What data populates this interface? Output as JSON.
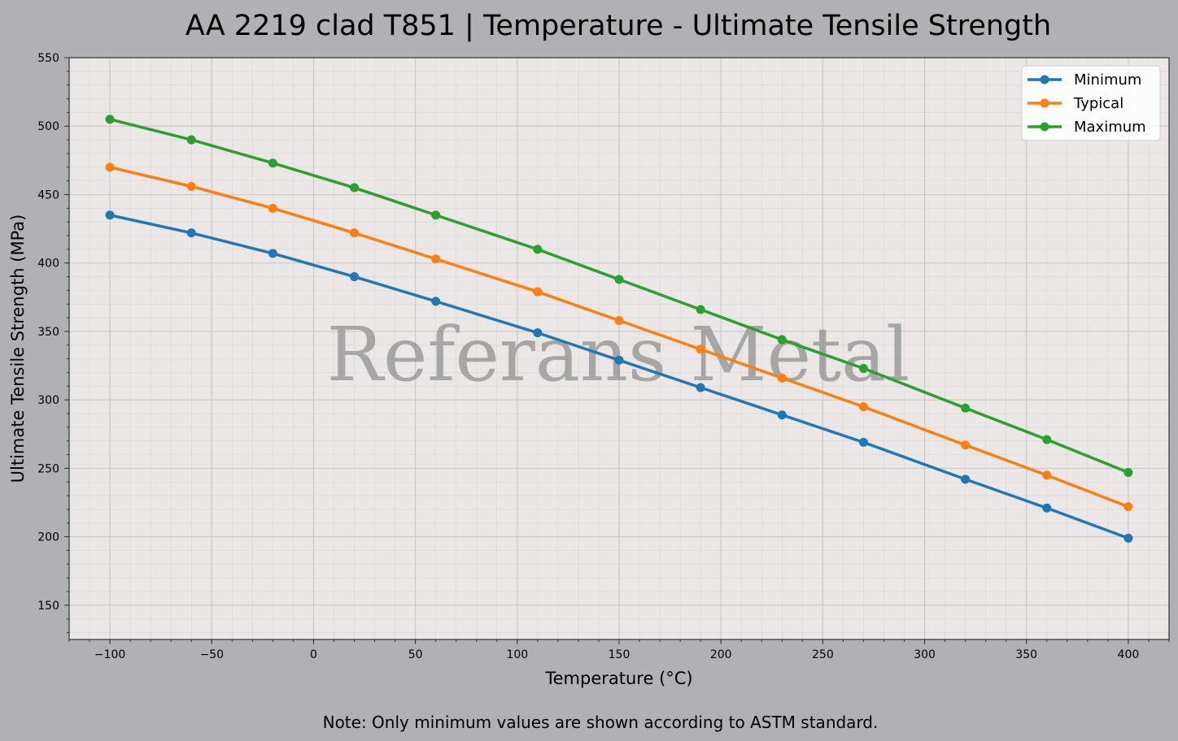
{
  "chart_data": {
    "type": "line",
    "title": "AA 2219 clad T851 | Temperature - Ultimate Tensile Strength",
    "xlabel": "Temperature (°C)",
    "ylabel": "Ultimate Tensile Strength (MPa)",
    "xlim": [
      -120,
      420
    ],
    "ylim": [
      125,
      550
    ],
    "xticks": [
      -100,
      -50,
      0,
      50,
      100,
      150,
      200,
      250,
      300,
      350,
      400
    ],
    "xtick_labels": [
      "−100",
      "−50",
      "0",
      "50",
      "100",
      "150",
      "200",
      "250",
      "300",
      "350",
      "400"
    ],
    "yticks": [
      150,
      200,
      250,
      300,
      350,
      400,
      450,
      500,
      550
    ],
    "grid": true,
    "minor_grid": true,
    "legend_position": "top-right",
    "x": [
      -100,
      -60,
      -20,
      20,
      60,
      110,
      150,
      190,
      230,
      270,
      320,
      360,
      400
    ],
    "series": [
      {
        "name": "Minimum",
        "color": "#1f77b4",
        "values": [
          435,
          422,
          407,
          390,
          372,
          349,
          329,
          309,
          289,
          269,
          242,
          221,
          199
        ]
      },
      {
        "name": "Typical",
        "color": "#ff7f0e",
        "values": [
          470,
          456,
          440,
          422,
          403,
          379,
          358,
          337,
          316,
          295,
          267,
          245,
          222
        ]
      },
      {
        "name": "Maximum",
        "color": "#2ca02c",
        "values": [
          505,
          490,
          473,
          455,
          435,
          410,
          388,
          366,
          344,
          323,
          294,
          271,
          247
        ]
      }
    ],
    "watermark": "Referans Metal",
    "note": "Note: Only minimum values are shown according to ASTM standard."
  }
}
